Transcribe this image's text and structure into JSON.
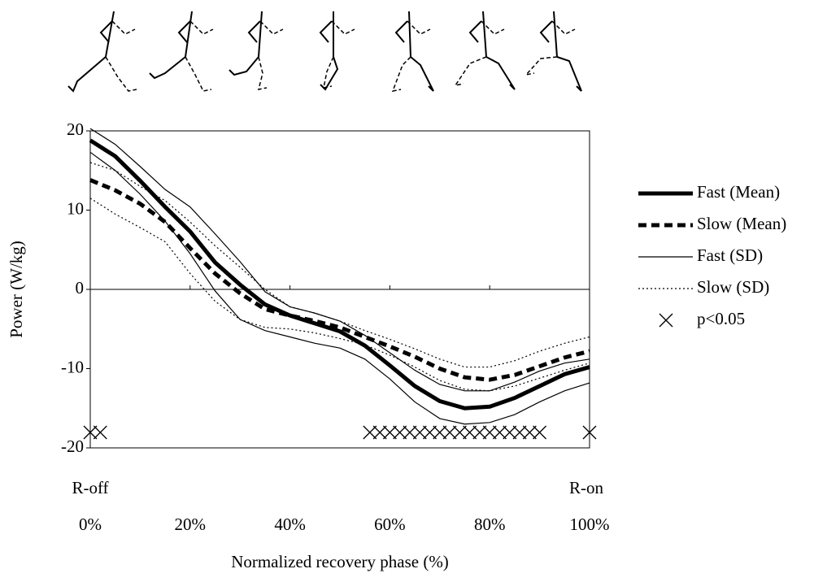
{
  "chart_data": {
    "type": "line",
    "y_label": "Power (W/kg)",
    "x_label": "Normalized recovery phase (%)",
    "start_label": "R-off",
    "end_label": "R-on",
    "xlim": [
      0,
      100
    ],
    "ylim": [
      -20,
      20
    ],
    "xticks": [
      {
        "value": 0,
        "label": "0%"
      },
      {
        "value": 20,
        "label": "20%"
      },
      {
        "value": 40,
        "label": "40%"
      },
      {
        "value": 60,
        "label": "60%"
      },
      {
        "value": 80,
        "label": "80%"
      },
      {
        "value": 100,
        "label": "100%"
      }
    ],
    "yticks": [
      20,
      10,
      0,
      -10,
      -20
    ],
    "x": [
      0,
      5,
      10,
      15,
      20,
      25,
      30,
      35,
      40,
      45,
      50,
      55,
      60,
      65,
      70,
      75,
      80,
      85,
      90,
      95,
      100
    ],
    "series": [
      {
        "name": "Fast (Mean)",
        "color": "#000000",
        "style": "thick-solid",
        "values": [
          18.8,
          16.8,
          13.7,
          10.4,
          7.3,
          3.4,
          0.6,
          -1.9,
          -3.3,
          -4.3,
          -5.3,
          -7.1,
          -9.6,
          -12.2,
          -14.1,
          -15.0,
          -14.8,
          -13.7,
          -12.2,
          -10.7,
          -9.8
        ]
      },
      {
        "name": "Slow (Mean)",
        "color": "#000000",
        "style": "thick-dashed",
        "values": [
          13.8,
          12.5,
          10.8,
          8.5,
          5.2,
          2.0,
          -0.5,
          -2.5,
          -3.3,
          -4.0,
          -4.8,
          -6.0,
          -7.2,
          -8.5,
          -10.0,
          -11.1,
          -11.4,
          -10.8,
          -9.7,
          -8.6,
          -7.8
        ]
      },
      {
        "name": "Fast (SD)",
        "color": "#000000",
        "style": "thin-solid",
        "upper": [
          20.3,
          18.3,
          15.5,
          12.6,
          10.4,
          7.0,
          3.5,
          -0.3,
          -2.2,
          -3.0,
          -4.0,
          -5.8,
          -8.0,
          -10.2,
          -12.0,
          -12.8,
          -12.8,
          -11.7,
          -10.3,
          -9.3,
          -8.8
        ],
        "lower": [
          17.3,
          15.0,
          12.0,
          8.6,
          4.5,
          -0.2,
          -3.8,
          -5.2,
          -6.0,
          -6.8,
          -7.4,
          -8.8,
          -11.3,
          -14.2,
          -16.3,
          -17.0,
          -16.8,
          -15.8,
          -14.2,
          -12.8,
          -11.8
        ]
      },
      {
        "name": "Slow (SD)",
        "color": "#000000",
        "style": "dotted",
        "upper": [
          16.0,
          15.0,
          13.0,
          11.2,
          8.5,
          5.5,
          2.8,
          0.0,
          -2.2,
          -3.0,
          -4.0,
          -5.2,
          -6.3,
          -7.5,
          -8.8,
          -9.8,
          -9.8,
          -9.0,
          -7.8,
          -6.8,
          -6.0
        ],
        "lower": [
          11.5,
          9.5,
          7.8,
          6.0,
          2.0,
          -1.5,
          -3.8,
          -4.8,
          -5.0,
          -5.5,
          -6.2,
          -7.0,
          -8.3,
          -9.8,
          -11.5,
          -12.6,
          -12.8,
          -12.2,
          -11.2,
          -10.2,
          -9.3
        ]
      }
    ],
    "significant": {
      "name": "p<0.05",
      "x": [
        0,
        2,
        56,
        58,
        60,
        62,
        64,
        66,
        68,
        70,
        72,
        74,
        76,
        78,
        80,
        82,
        84,
        86,
        88,
        90,
        100
      ]
    }
  }
}
